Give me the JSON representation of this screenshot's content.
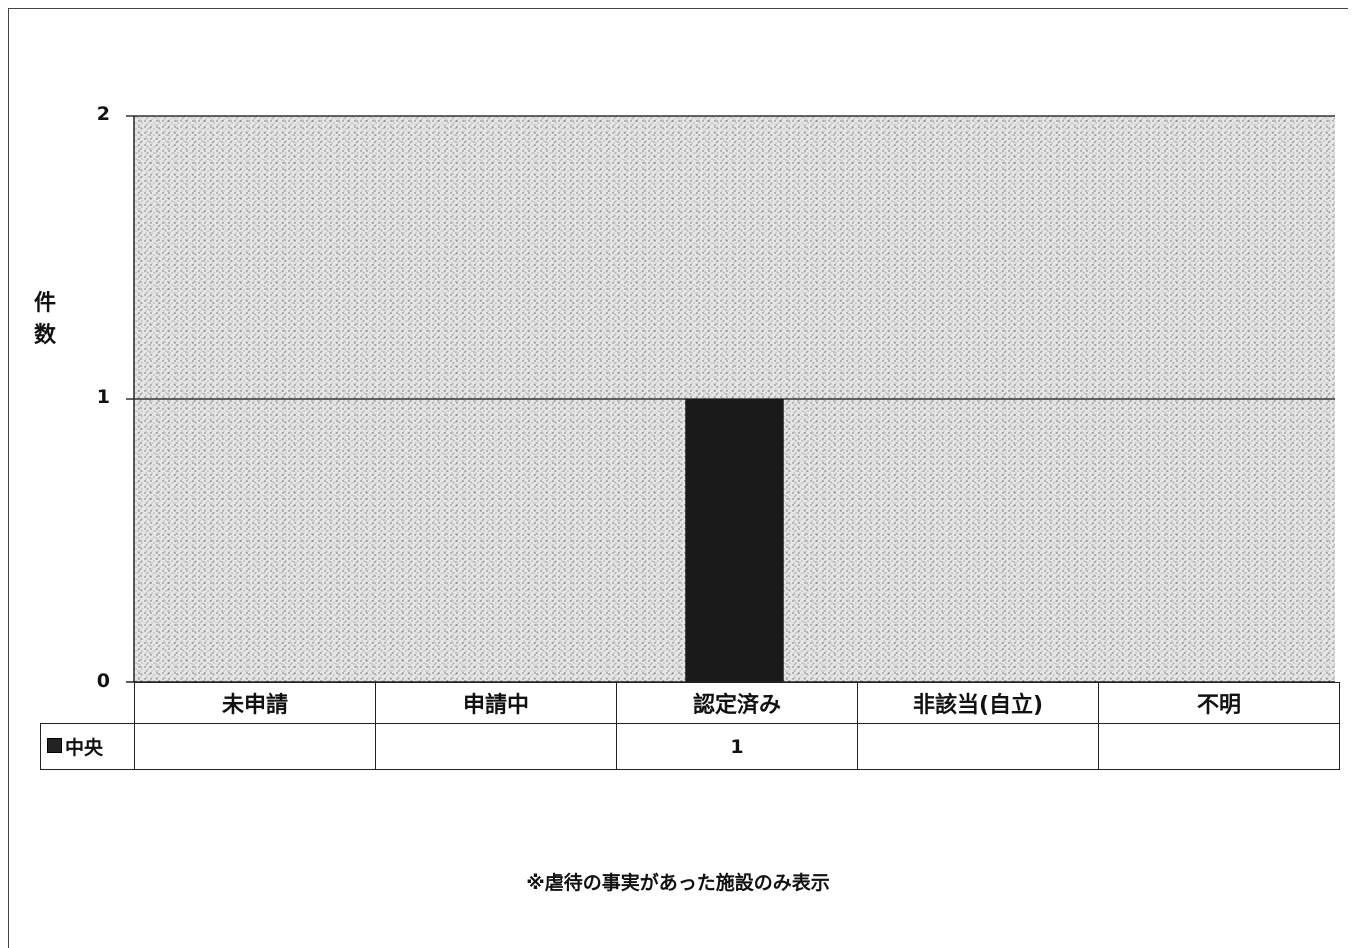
{
  "chart_data": {
    "type": "bar",
    "title": "",
    "xlabel": "",
    "ylabel": "件数",
    "ylim": [
      0,
      2
    ],
    "yticks": [
      "0",
      "1",
      "2"
    ],
    "grid": true,
    "categories": [
      "未申請",
      "申請中",
      "認定済み",
      "非該当(自立)",
      "不明"
    ],
    "series": [
      {
        "name": "中央",
        "values": [
          null,
          null,
          1,
          null,
          null
        ],
        "value_labels": [
          "",
          "",
          "1",
          "",
          ""
        ],
        "color": "#1a1a1a"
      }
    ],
    "legend": "data-table"
  },
  "footnote": "※虐待の事実があった施設のみ表示",
  "colors": {
    "plot_background": "#d9d9d9",
    "bar": "#1a1a1a",
    "grid": "#333333"
  }
}
